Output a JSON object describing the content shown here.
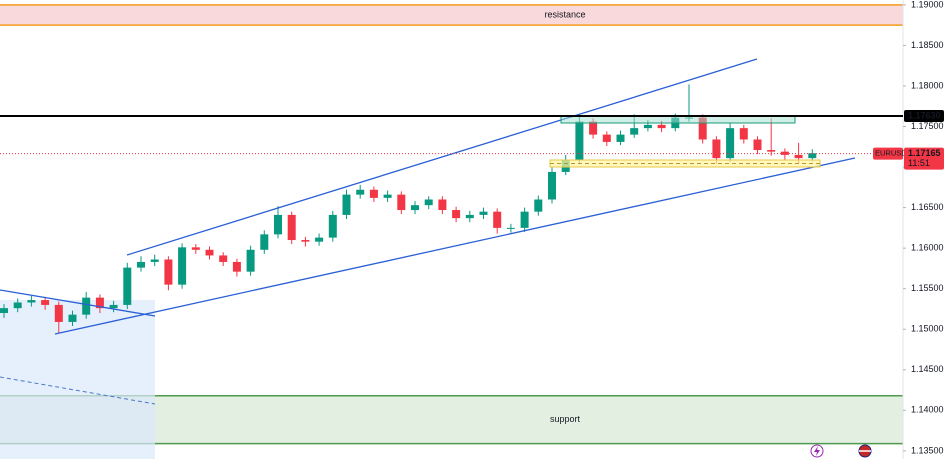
{
  "chart_data": {
    "type": "candlestick",
    "symbol": "EURUSD",
    "countdown": "11:51",
    "up_color": "#089981",
    "down_color": "#f23645",
    "ylim": [
      1.134,
      1.1906
    ],
    "yticks": [
      {
        "value": 1.135,
        "label": "1.13500"
      },
      {
        "value": 1.14,
        "label": "1.14000"
      },
      {
        "value": 1.145,
        "label": "1.14500"
      },
      {
        "value": 1.15,
        "label": "1.15000"
      },
      {
        "value": 1.155,
        "label": "1.15500"
      },
      {
        "value": 1.16,
        "label": "1.16000"
      },
      {
        "value": 1.165,
        "label": "1.16500"
      },
      {
        "value": 1.17,
        "label": "1.17000"
      },
      {
        "value": 1.175,
        "label": "1.17500"
      },
      {
        "value": 1.18,
        "label": "1.18000"
      },
      {
        "value": 1.185,
        "label": "1.18500"
      },
      {
        "value": 1.19,
        "label": "1.19000"
      }
    ],
    "grid": false,
    "level": {
      "value": 1.1763,
      "label": "1.17630"
    },
    "last_price": {
      "value": 1.17165,
      "label": "1.17165"
    },
    "zones": [
      {
        "label": "resistance",
        "range": [
          1.1875,
          1.19
        ],
        "color": "#f6c9cc",
        "border": "#f59c1a"
      },
      {
        "label": "support",
        "range": [
          1.1359,
          1.1418
        ],
        "color": "#d5e8d4",
        "border": "#4e9a4e"
      }
    ],
    "open": [
      1.152,
      1.1526,
      1.1533,
      1.1536,
      1.153,
      1.1509,
      1.1518,
      1.1539,
      1.1526,
      1.153,
      1.1576,
      1.1583,
      1.1586,
      1.1555,
      1.1601,
      1.1598,
      1.1591,
      1.1583,
      1.1571,
      1.1598,
      1.1617,
      1.1641,
      1.161,
      1.1608,
      1.1613,
      1.1641,
      1.1666,
      1.1672,
      1.1662,
      1.1666,
      1.1647,
      1.1653,
      1.166,
      1.1647,
      1.1637,
      1.1641,
      1.1645,
      1.1625,
      1.1625,
      1.1645,
      1.166,
      1.1694,
      1.1709,
      1.1756,
      1.174,
      1.1731,
      1.174,
      1.1748,
      1.1752,
      1.1748,
      1.1761,
      1.1761,
      1.1734,
      1.1711,
      1.1748,
      1.1734,
      1.1721,
      1.1719,
      1.1715,
      1.1711
    ],
    "high": [
      1.1531,
      1.1538,
      1.1541,
      1.154,
      1.1534,
      1.1523,
      1.1546,
      1.1543,
      1.1535,
      1.1582,
      1.159,
      1.1592,
      1.159,
      1.1606,
      1.1605,
      1.1602,
      1.1595,
      1.1587,
      1.1603,
      1.1622,
      1.1652,
      1.1645,
      1.1614,
      1.1618,
      1.1646,
      1.1672,
      1.1678,
      1.1676,
      1.1671,
      1.167,
      1.1658,
      1.1664,
      1.1664,
      1.1651,
      1.1646,
      1.165,
      1.1649,
      1.163,
      1.165,
      1.1665,
      1.17,
      1.1715,
      1.1763,
      1.176,
      1.1744,
      1.1745,
      1.1765,
      1.1758,
      1.1757,
      1.1766,
      1.1802,
      1.1765,
      1.1738,
      1.1755,
      1.1752,
      1.1738,
      1.176,
      1.1723,
      1.173,
      1.1722
    ],
    "low": [
      1.1514,
      1.1521,
      1.1528,
      1.1524,
      1.1496,
      1.1504,
      1.1513,
      1.152,
      1.1521,
      1.1525,
      1.1571,
      1.1578,
      1.1548,
      1.155,
      1.1593,
      1.1586,
      1.1578,
      1.1565,
      1.1566,
      1.1593,
      1.1612,
      1.1605,
      1.1602,
      1.1603,
      1.1608,
      1.1636,
      1.1661,
      1.1657,
      1.1657,
      1.1642,
      1.1642,
      1.1648,
      1.1642,
      1.1632,
      1.1632,
      1.1636,
      1.1618,
      1.1619,
      1.162,
      1.164,
      1.1655,
      1.169,
      1.1704,
      1.1735,
      1.1726,
      1.1727,
      1.1736,
      1.1744,
      1.1743,
      1.1744,
      1.1756,
      1.1729,
      1.1704,
      1.1706,
      1.1729,
      1.1716,
      1.1714,
      1.1708,
      1.1705,
      1.1707
    ],
    "close": [
      1.1526,
      1.1533,
      1.1536,
      1.153,
      1.1509,
      1.1518,
      1.1539,
      1.1526,
      1.153,
      1.1576,
      1.1583,
      1.1586,
      1.1555,
      1.1601,
      1.1598,
      1.1591,
      1.1583,
      1.1571,
      1.1598,
      1.1617,
      1.1641,
      1.161,
      1.1608,
      1.1613,
      1.1641,
      1.1666,
      1.1672,
      1.1662,
      1.1666,
      1.1647,
      1.1653,
      1.166,
      1.1647,
      1.1637,
      1.1641,
      1.1645,
      1.1625,
      1.1625,
      1.1645,
      1.166,
      1.1694,
      1.1709,
      1.1756,
      1.174,
      1.1731,
      1.174,
      1.1748,
      1.1752,
      1.1748,
      1.1761,
      1.1761,
      1.1734,
      1.1711,
      1.1748,
      1.1734,
      1.1721,
      1.1719,
      1.1715,
      1.1711,
      1.1717
    ]
  }
}
